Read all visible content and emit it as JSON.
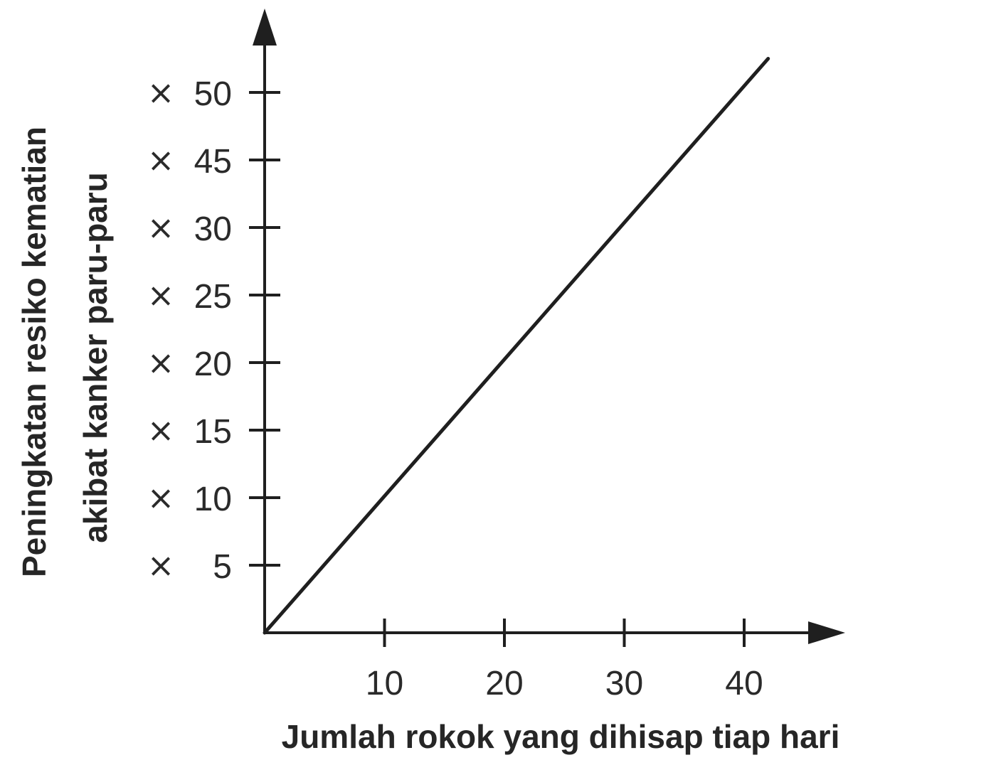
{
  "chart_data": {
    "type": "line",
    "title": "",
    "xlabel": "Jumlah rokok yang dihisap tiap hari",
    "ylabel_lines": [
      "Peningkatan resiko kematian",
      "akibat kanker paru-paru"
    ],
    "x_ticks": [
      {
        "value": 10,
        "label": "10"
      },
      {
        "value": 20,
        "label": "20"
      },
      {
        "value": 30,
        "label": "30"
      },
      {
        "value": 40,
        "label": "40"
      }
    ],
    "y_ticks": [
      {
        "value": 5,
        "prefix": "×",
        "label": "5"
      },
      {
        "value": 10,
        "prefix": "×",
        "label": "10"
      },
      {
        "value": 15,
        "prefix": "×",
        "label": "15"
      },
      {
        "value": 20,
        "prefix": "×",
        "label": "20"
      },
      {
        "value": 25,
        "prefix": "×",
        "label": "25"
      },
      {
        "value": 30,
        "prefix": "×",
        "label": "30"
      },
      {
        "value": 45,
        "prefix": "×",
        "label": "45"
      },
      {
        "value": 50,
        "prefix": "×",
        "label": "50"
      }
    ],
    "series": [
      {
        "points": [
          {
            "x": 0,
            "y_level": 0
          },
          {
            "x": 42,
            "y_level": 8.5
          }
        ]
      }
    ],
    "grid": false,
    "legend": "none",
    "line_color": "#1f1f1f"
  }
}
